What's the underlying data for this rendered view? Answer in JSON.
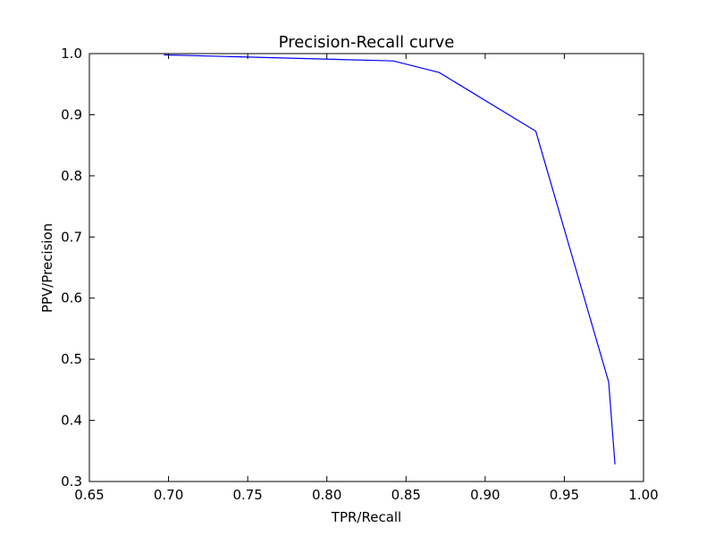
{
  "chart_data": {
    "type": "line",
    "title": "Precision-Recall curve",
    "xlabel": "TPR/Recall",
    "ylabel": "PPV/Precision",
    "xlim": [
      0.65,
      1.0
    ],
    "ylim": [
      0.3,
      1.0
    ],
    "xticks": [
      0.65,
      0.7,
      0.75,
      0.8,
      0.85,
      0.9,
      0.95,
      1.0
    ],
    "xtick_labels": [
      "0.65",
      "0.70",
      "0.75",
      "0.80",
      "0.85",
      "0.90",
      "0.95",
      "1.00"
    ],
    "yticks": [
      0.3,
      0.4,
      0.5,
      0.6,
      0.7,
      0.8,
      0.9,
      1.0
    ],
    "ytick_labels": [
      "0.3",
      "0.4",
      "0.5",
      "0.6",
      "0.7",
      "0.8",
      "0.9",
      "1.0"
    ],
    "grid": false,
    "series": [
      {
        "color": "#0000ff",
        "x": [
          0.697,
          0.842,
          0.871,
          0.932,
          0.978,
          0.982
        ],
        "y": [
          0.998,
          0.988,
          0.969,
          0.873,
          0.463,
          0.328
        ]
      }
    ]
  }
}
